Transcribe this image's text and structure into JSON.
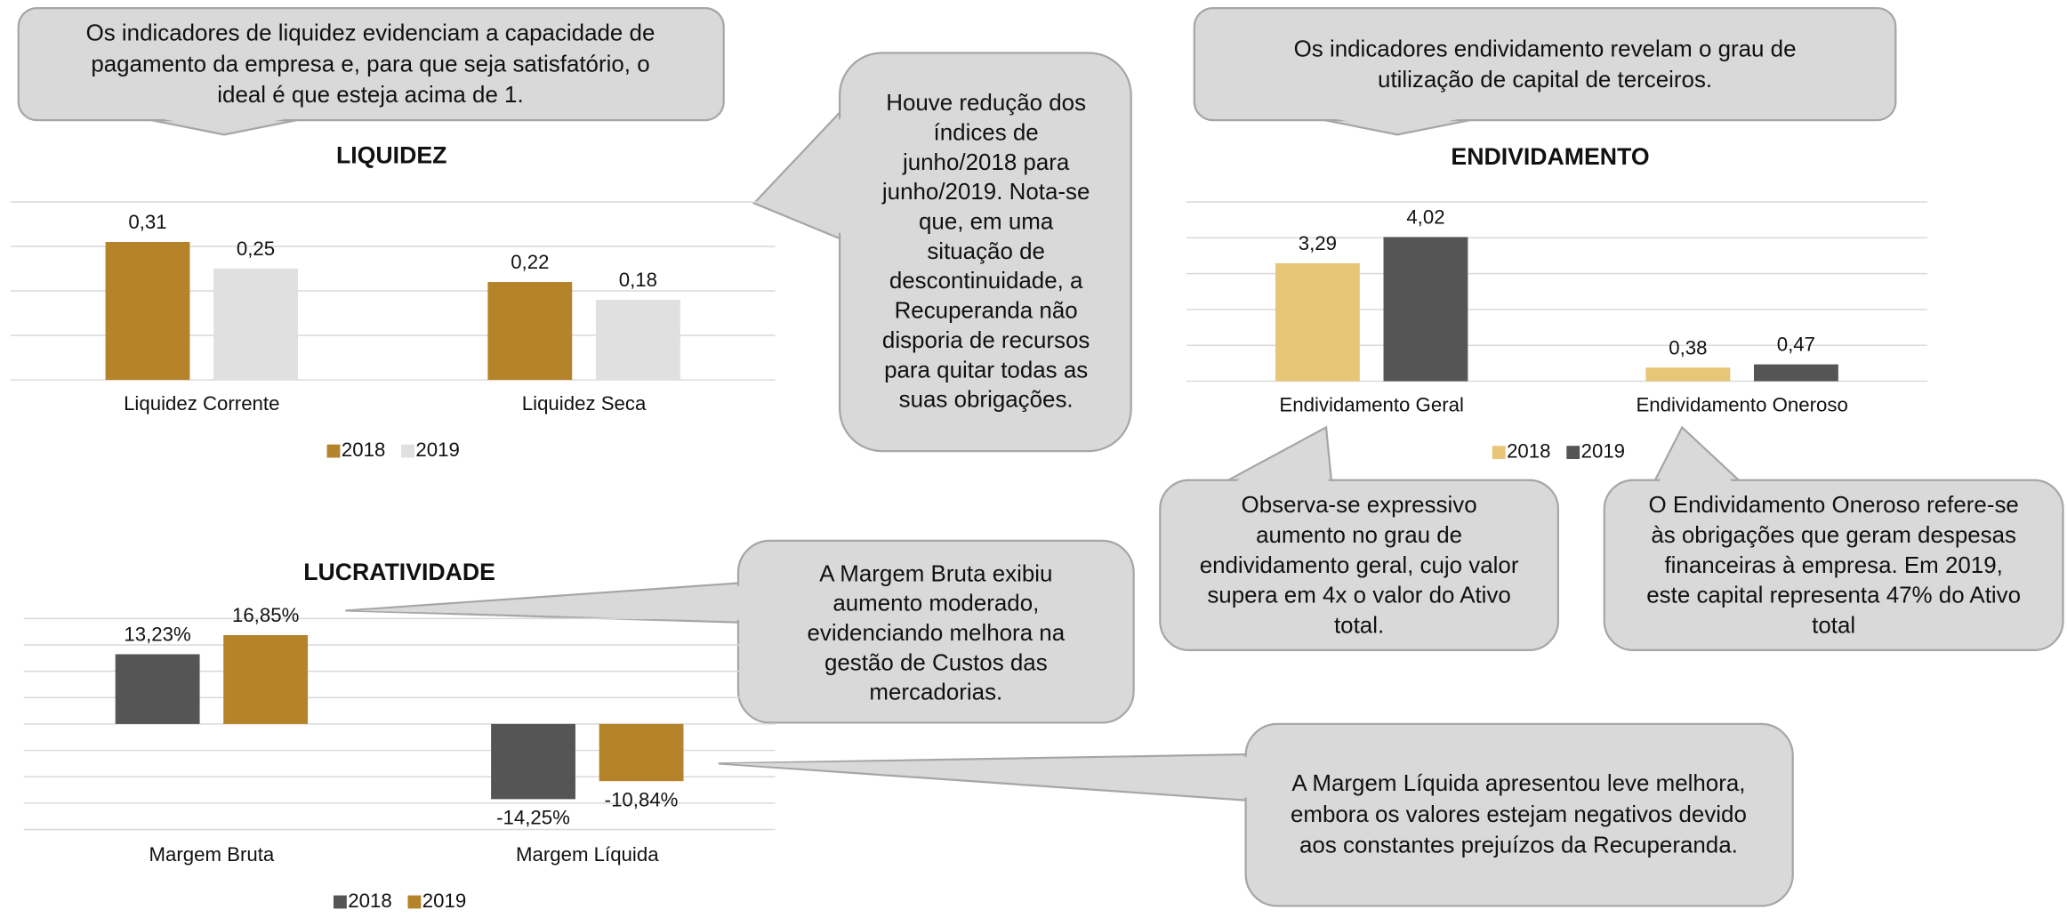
{
  "chart_data": [
    {
      "type": "bar",
      "title": "LIQUIDEZ",
      "categories": [
        "Liquidez Corrente",
        "Liquidez Seca"
      ],
      "series": [
        {
          "name": "2018",
          "color": "#b5832a",
          "values": [
            0.31,
            0.22
          ],
          "value_labels": [
            "0,31",
            "0,22"
          ]
        },
        {
          "name": "2019",
          "color": "#e0e0e0",
          "values": [
            0.25,
            0.18
          ],
          "value_labels": [
            "0,25",
            "0,18"
          ]
        }
      ],
      "ylim": [
        0,
        0.4
      ],
      "yticks": [
        0,
        0.1,
        0.2,
        0.3,
        0.4
      ],
      "grid": true
    },
    {
      "type": "bar",
      "title": "ENDIVIDAMENTO",
      "categories": [
        "Endividamento Geral",
        "Endividamento Oneroso"
      ],
      "series": [
        {
          "name": "2018",
          "color": "#e8c677",
          "values": [
            3.29,
            0.38
          ],
          "value_labels": [
            "3,29",
            "0,38"
          ]
        },
        {
          "name": "2019",
          "color": "#555555",
          "values": [
            4.02,
            0.47
          ],
          "value_labels": [
            "4,02",
            "0,47"
          ]
        }
      ],
      "ylim": [
        0,
        5
      ],
      "yticks": [
        0,
        1,
        2,
        3,
        4,
        5
      ],
      "grid": true
    },
    {
      "type": "bar",
      "title": "LUCRATIVIDADE",
      "categories": [
        "Margem Bruta",
        "Margem Líquida"
      ],
      "series": [
        {
          "name": "2018",
          "color": "#555555",
          "values": [
            13.23,
            -14.25
          ],
          "value_labels": [
            "13,23%",
            "-14,25%"
          ]
        },
        {
          "name": "2019",
          "color": "#b5832a",
          "values": [
            16.85,
            -10.84
          ],
          "value_labels": [
            "16,85%",
            "-10,84%"
          ]
        }
      ],
      "ylim": [
        -20,
        20
      ],
      "yticks": [
        -20,
        -15,
        -10,
        -5,
        0,
        5,
        10,
        15,
        20
      ],
      "grid": true
    }
  ],
  "callouts": [
    {
      "lines": [
        "Os indicadores de liquidez evidenciam a capacidade de",
        "pagamento da empresa e, para que seja satisfatório, o",
        "ideal é que esteja acima de 1."
      ]
    },
    {
      "lines": [
        "Houve redução dos",
        "índices de",
        "junho/2018 para",
        "junho/2019. Nota-se",
        "que, em uma",
        "situação de",
        "descontinuidade, a",
        "Recuperanda não",
        "disporia de recursos",
        "para quitar todas as",
        "suas obrigações."
      ]
    },
    {
      "lines": [
        "Os indicadores endividamento revelam o grau de",
        "utilização de capital de terceiros."
      ]
    },
    {
      "lines": [
        "Observa-se expressivo",
        "aumento no grau de",
        "endividamento geral, cujo valor",
        "supera em 4x o valor do Ativo",
        "total."
      ]
    },
    {
      "lines": [
        "O Endividamento Oneroso refere-se",
        "às obrigações que geram despesas",
        "financeiras à empresa. Em 2019,",
        "este capital representa 47% do Ativo",
        "total"
      ]
    },
    {
      "lines": [
        "A Margem Bruta exibiu",
        "aumento moderado,",
        "evidenciando melhora na",
        "gestão de Custos das",
        "mercadorias."
      ]
    },
    {
      "lines": [
        "A Margem Líquida apresentou leve melhora,",
        "embora os valores estejam negativos devido",
        "aos constantes prejuízos da Recuperanda."
      ]
    }
  ]
}
